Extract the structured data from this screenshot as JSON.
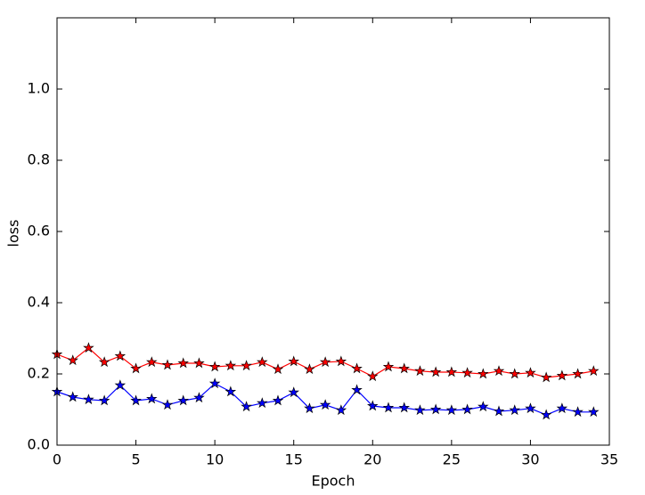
{
  "chart_data": {
    "type": "line",
    "xlabel": "Epoch",
    "ylabel": "loss",
    "x": [
      0,
      1,
      2,
      3,
      4,
      5,
      6,
      7,
      8,
      9,
      10,
      11,
      12,
      13,
      14,
      15,
      16,
      17,
      18,
      19,
      20,
      21,
      22,
      23,
      24,
      25,
      26,
      27,
      28,
      29,
      30,
      31,
      32,
      33,
      34
    ],
    "series": [
      {
        "color": "#ff0000",
        "values": [
          0.255,
          0.238,
          0.273,
          0.233,
          0.25,
          0.215,
          0.233,
          0.225,
          0.23,
          0.23,
          0.22,
          0.223,
          0.223,
          0.233,
          0.213,
          0.235,
          0.213,
          0.233,
          0.235,
          0.215,
          0.193,
          0.22,
          0.215,
          0.208,
          0.205,
          0.205,
          0.203,
          0.2,
          0.208,
          0.2,
          0.203,
          0.19,
          0.195,
          0.2,
          0.208
        ]
      },
      {
        "color": "#0000ff",
        "values": [
          0.15,
          0.135,
          0.128,
          0.125,
          0.168,
          0.125,
          0.13,
          0.113,
          0.125,
          0.133,
          0.173,
          0.15,
          0.108,
          0.118,
          0.125,
          0.148,
          0.103,
          0.113,
          0.098,
          0.155,
          0.11,
          0.105,
          0.105,
          0.098,
          0.1,
          0.098,
          0.1,
          0.108,
          0.095,
          0.098,
          0.103,
          0.085,
          0.103,
          0.093,
          0.093
        ]
      }
    ],
    "xlim": [
      0,
      35
    ],
    "xticks": [
      0,
      5,
      10,
      15,
      20,
      25,
      30,
      35
    ],
    "ylim": [
      0,
      1.2
    ],
    "yticks": [
      {
        "value": 0,
        "label": "0.0"
      },
      {
        "value": 0.2,
        "label": "0.2"
      },
      {
        "value": 0.4,
        "label": "0.4"
      },
      {
        "value": 0.6,
        "label": "0.6"
      },
      {
        "value": 0.8,
        "label": "0.8"
      },
      {
        "value": 1.0,
        "label": "1.0"
      }
    ],
    "grid": false
  }
}
